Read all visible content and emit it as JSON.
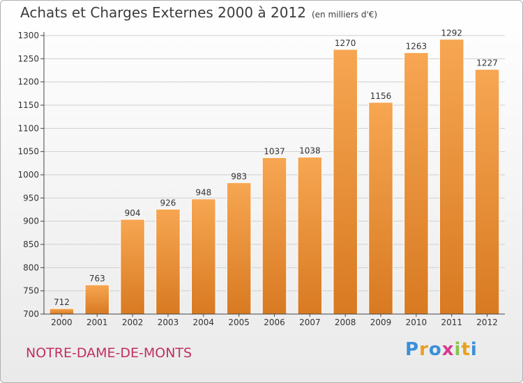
{
  "header": {
    "title": "Achats et Charges Externes 2000 à 2012",
    "unit": "(en milliers d'€)"
  },
  "footer": {
    "town": "NOTRE-DAME-DE-MONTS",
    "brand": "Proxiti",
    "brand_letters": [
      {
        "char": "P",
        "color": "#3a8fd8"
      },
      {
        "char": "r",
        "color": "#e8a020"
      },
      {
        "char": "o",
        "color": "#3a8fd8"
      },
      {
        "char": "x",
        "color": "#d83a8f"
      },
      {
        "char": "i",
        "color": "#8bc34a"
      },
      {
        "char": "t",
        "color": "#e8a020"
      },
      {
        "char": "i",
        "color": "#3a8fd8"
      }
    ]
  },
  "colors": {
    "bar_top": "#f7a652",
    "bar_bottom": "#d87a22",
    "grid": "#cfcfcf",
    "axis": "#444444",
    "text": "#333333"
  },
  "chart_data": {
    "type": "bar",
    "title": "Achats et Charges Externes 2000 à 2012",
    "categories": [
      "2000",
      "2001",
      "2002",
      "2003",
      "2004",
      "2005",
      "2006",
      "2007",
      "2008",
      "2009",
      "2010",
      "2011",
      "2012"
    ],
    "values": [
      712,
      763,
      904,
      926,
      948,
      983,
      1037,
      1038,
      1270,
      1156,
      1263,
      1292,
      1227
    ],
    "yticks": [
      700,
      750,
      800,
      850,
      900,
      950,
      1000,
      1050,
      1100,
      1150,
      1200,
      1250,
      1300
    ],
    "ylim": [
      700,
      1300
    ],
    "grid": true,
    "legend": "none"
  }
}
